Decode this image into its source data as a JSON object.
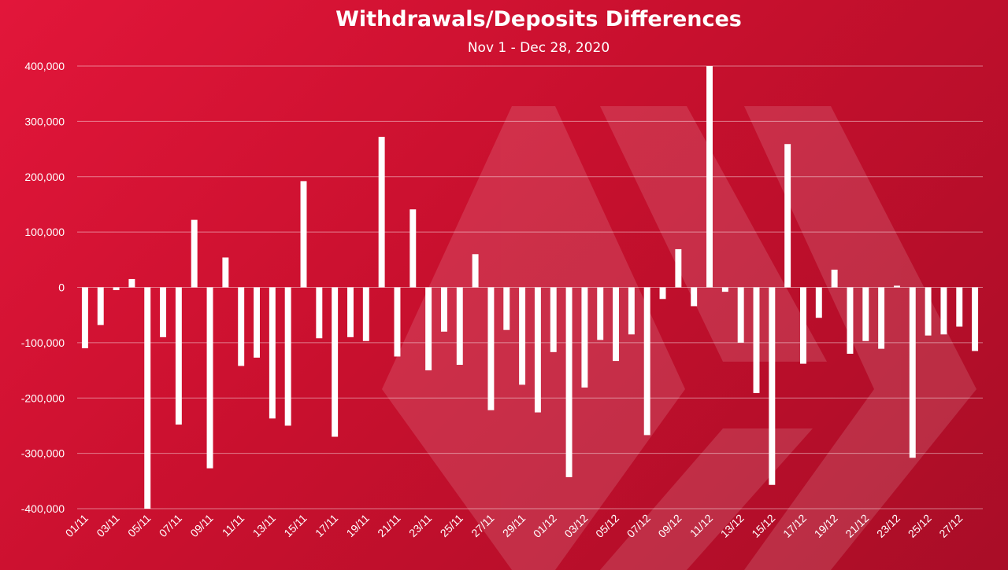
{
  "chart_data": {
    "type": "bar",
    "title": "Withdrawals/Deposits Differences",
    "subtitle": "Nov 1 - Dec 28, 2020",
    "xlabel": "",
    "ylabel": "",
    "ylim": [
      -400000,
      400000
    ],
    "yticks": [
      400000,
      300000,
      200000,
      100000,
      0,
      -100000,
      -200000,
      -300000,
      -400000
    ],
    "ytick_labels": [
      "400,000",
      "300,000",
      "200,000",
      "100,000",
      "0",
      "-100,000",
      "-200,000",
      "-300,000",
      "-400,000"
    ],
    "grid": true,
    "legend": "none",
    "bar_color": "#ffffff",
    "background_color": "#c8102e",
    "categories": [
      "01/11",
      "02/11",
      "03/11",
      "04/11",
      "05/11",
      "06/11",
      "07/11",
      "08/11",
      "09/11",
      "10/11",
      "11/11",
      "12/11",
      "13/11",
      "14/11",
      "15/11",
      "16/11",
      "17/11",
      "18/11",
      "19/11",
      "20/11",
      "21/11",
      "22/11",
      "23/11",
      "24/11",
      "25/11",
      "26/11",
      "27/11",
      "28/11",
      "29/11",
      "30/11",
      "01/12",
      "02/12",
      "03/12",
      "04/12",
      "05/12",
      "06/12",
      "07/12",
      "08/12",
      "09/12",
      "10/12",
      "11/12",
      "12/12",
      "13/12",
      "14/12",
      "15/12",
      "16/12",
      "17/12",
      "18/12",
      "19/12",
      "20/12",
      "21/12",
      "22/12",
      "23/12",
      "24/12",
      "25/12",
      "26/12",
      "27/12",
      "28/12"
    ],
    "x_tick_labels": [
      "01/11",
      "03/11",
      "05/11",
      "07/11",
      "09/11",
      "11/11",
      "13/11",
      "15/11",
      "17/11",
      "19/11",
      "21/11",
      "23/11",
      "25/11",
      "27/11",
      "29/11",
      "01/12",
      "03/12",
      "05/12",
      "07/12",
      "09/12",
      "11/12",
      "13/12",
      "15/12",
      "17/12",
      "19/12",
      "21/12",
      "23/12",
      "25/12",
      "27/12"
    ],
    "values": [
      -110000,
      -68000,
      -5000,
      15000,
      -400000,
      -90000,
      -248000,
      122000,
      -327000,
      54000,
      -142000,
      -127000,
      -237000,
      -250000,
      192000,
      -92000,
      -270000,
      -90000,
      -97000,
      272000,
      -125000,
      141000,
      -150000,
      -80000,
      -140000,
      60000,
      -222000,
      -77000,
      -176000,
      -226000,
      -117000,
      -343000,
      -181000,
      -95000,
      -133000,
      -85000,
      -267000,
      -21000,
      69000,
      -34000,
      400000,
      -8000,
      -100000,
      -191000,
      -357000,
      259000,
      -138000,
      -55000,
      32000,
      -120000,
      -97000,
      -111000,
      3000,
      -308000,
      -87000,
      -85000,
      -71000,
      -115000
    ]
  }
}
